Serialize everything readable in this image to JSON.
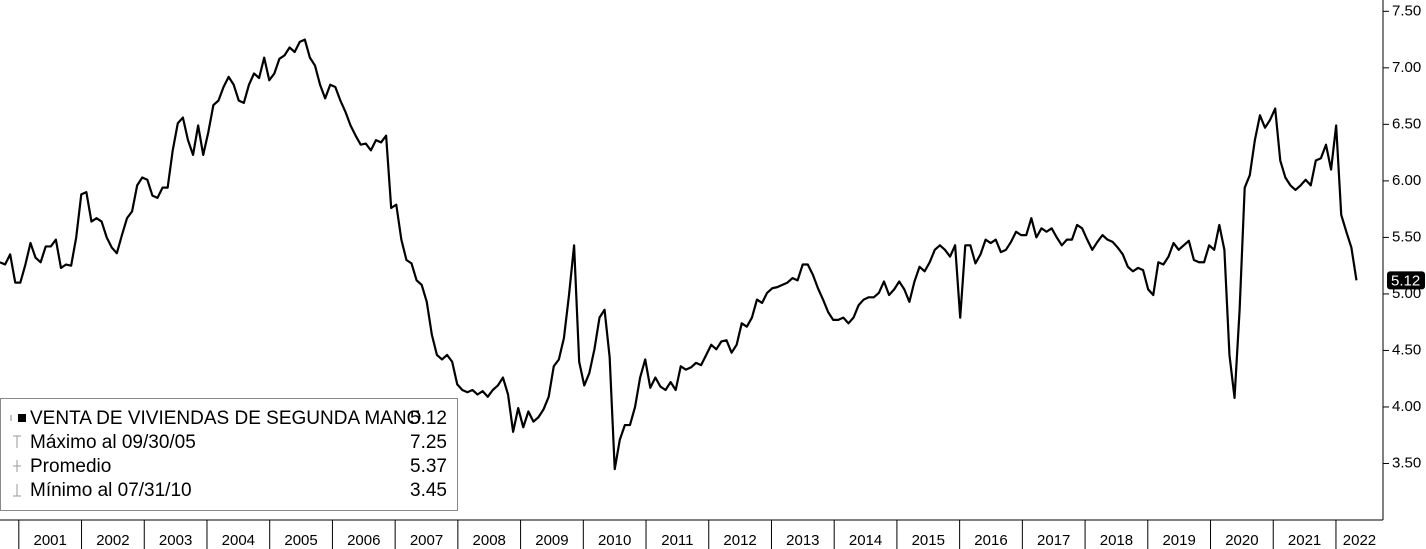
{
  "chart_data": {
    "type": "line",
    "xlim": [
      2000.7,
      2022.75
    ],
    "ylim": [
      3.0,
      7.6
    ],
    "xticks": [
      2001,
      2002,
      2003,
      2004,
      2005,
      2006,
      2007,
      2008,
      2009,
      2010,
      2011,
      2012,
      2013,
      2014,
      2015,
      2016,
      2017,
      2018,
      2019,
      2020,
      2021,
      2022
    ],
    "yticks": [
      {
        "value": 3.5,
        "label": "3.50"
      },
      {
        "value": 4.0,
        "label": "4.00"
      },
      {
        "value": 4.5,
        "label": "4.50"
      },
      {
        "value": 5.0,
        "label": "5.00"
      },
      {
        "value": 5.5,
        "label": "5.50"
      },
      {
        "value": 6.0,
        "label": "6.00"
      },
      {
        "value": 6.5,
        "label": "6.50"
      },
      {
        "value": 7.0,
        "label": "7.00"
      },
      {
        "value": 7.5,
        "label": "7.50"
      }
    ],
    "grid": false,
    "legend": "bottom-left",
    "x": [
      2000.7,
      2000.781,
      2000.862,
      2000.943,
      2001.024,
      2001.105,
      2001.186,
      2001.267,
      2001.348,
      2001.429,
      2001.51,
      2001.591,
      2001.672,
      2001.753,
      2001.834,
      2001.915,
      2001.996,
      2002.077,
      2002.158,
      2002.239,
      2002.32,
      2002.401,
      2002.482,
      2002.563,
      2002.644,
      2002.725,
      2002.806,
      2002.887,
      2002.968,
      2003.049,
      2003.13,
      2003.211,
      2003.292,
      2003.373,
      2003.454,
      2003.535,
      2003.616,
      2003.697,
      2003.778,
      2003.859,
      2003.94,
      2004.021,
      2004.102,
      2004.183,
      2004.264,
      2004.345,
      2004.426,
      2004.507,
      2004.588,
      2004.669,
      2004.75,
      2004.831,
      2004.912,
      2004.993,
      2005.074,
      2005.155,
      2005.236,
      2005.317,
      2005.398,
      2005.479,
      2005.56,
      2005.641,
      2005.722,
      2005.803,
      2005.884,
      2005.965,
      2006.046,
      2006.127,
      2006.208,
      2006.289,
      2006.37,
      2006.451,
      2006.532,
      2006.613,
      2006.694,
      2006.775,
      2006.856,
      2006.937,
      2007.018,
      2007.099,
      2007.18,
      2007.261,
      2007.342,
      2007.423,
      2007.504,
      2007.585,
      2007.666,
      2007.747,
      2007.828,
      2007.909,
      2007.99,
      2008.071,
      2008.152,
      2008.233,
      2008.314,
      2008.395,
      2008.476,
      2008.557,
      2008.638,
      2008.719,
      2008.8,
      2008.881,
      2008.962,
      2009.043,
      2009.124,
      2009.205,
      2009.286,
      2009.367,
      2009.448,
      2009.529,
      2009.61,
      2009.691,
      2009.772,
      2009.853,
      2009.934,
      2010.015,
      2010.096,
      2010.177,
      2010.258,
      2010.339,
      2010.42,
      2010.501,
      2010.582,
      2010.663,
      2010.744,
      2010.825,
      2010.906,
      2010.987,
      2011.068,
      2011.149,
      2011.23,
      2011.311,
      2011.392,
      2011.473,
      2011.554,
      2011.635,
      2011.716,
      2011.797,
      2011.878,
      2011.959,
      2012.04,
      2012.121,
      2012.202,
      2012.283,
      2012.364,
      2012.445,
      2012.526,
      2012.607,
      2012.688,
      2012.769,
      2012.85,
      2012.931,
      2013.012,
      2013.093,
      2013.174,
      2013.255,
      2013.336,
      2013.417,
      2013.498,
      2013.579,
      2013.66,
      2013.741,
      2013.822,
      2013.903,
      2013.984,
      2014.065,
      2014.146,
      2014.227,
      2014.308,
      2014.389,
      2014.47,
      2014.551,
      2014.632,
      2014.713,
      2014.794,
      2014.875,
      2014.956,
      2015.037,
      2015.118,
      2015.199,
      2015.28,
      2015.361,
      2015.442,
      2015.523,
      2015.604,
      2015.685,
      2015.766,
      2015.847,
      2015.928,
      2016.009,
      2016.09,
      2016.171,
      2016.252,
      2016.333,
      2016.414,
      2016.495,
      2016.576,
      2016.657,
      2016.738,
      2016.819,
      2016.9,
      2016.981,
      2017.062,
      2017.143,
      2017.224,
      2017.305,
      2017.386,
      2017.467,
      2017.548,
      2017.629,
      2017.71,
      2017.791,
      2017.872,
      2017.953,
      2018.034,
      2018.115,
      2018.196,
      2018.277,
      2018.358,
      2018.439,
      2018.52,
      2018.601,
      2018.682,
      2018.763,
      2018.844,
      2018.925,
      2019.006,
      2019.087,
      2019.168,
      2019.249,
      2019.33,
      2019.411,
      2019.492,
      2019.573,
      2019.654,
      2019.735,
      2019.816,
      2019.897,
      2019.978,
      2020.059,
      2020.14,
      2020.221,
      2020.302,
      2020.383,
      2020.464,
      2020.545,
      2020.626,
      2020.707,
      2020.788,
      2020.869,
      2020.95,
      2021.031,
      2021.112,
      2021.193,
      2021.274,
      2021.355,
      2021.436,
      2021.517,
      2021.598,
      2021.679,
      2021.76,
      2021.841,
      2021.922,
      2022.003,
      2022.084,
      2022.165,
      2022.246,
      2022.327
    ],
    "series": [
      {
        "name": "VENTA DE VIVIENDAS DE SEGUNDA MANO",
        "color": "#000000",
        "values": [
          5.28,
          5.26,
          5.35,
          5.1,
          5.1,
          5.26,
          5.45,
          5.32,
          5.28,
          5.42,
          5.42,
          5.48,
          5.23,
          5.26,
          5.25,
          5.5,
          5.88,
          5.9,
          5.64,
          5.67,
          5.64,
          5.5,
          5.41,
          5.36,
          5.52,
          5.67,
          5.73,
          5.96,
          6.03,
          6.01,
          5.87,
          5.85,
          5.94,
          5.94,
          6.27,
          6.51,
          6.56,
          6.36,
          6.23,
          6.49,
          6.23,
          6.43,
          6.67,
          6.71,
          6.83,
          6.92,
          6.85,
          6.71,
          6.69,
          6.85,
          6.95,
          6.91,
          7.09,
          6.89,
          6.95,
          7.08,
          7.11,
          7.18,
          7.14,
          7.23,
          7.25,
          7.09,
          7.02,
          6.85,
          6.73,
          6.85,
          6.83,
          6.71,
          6.61,
          6.49,
          6.4,
          6.32,
          6.33,
          6.27,
          6.36,
          6.34,
          6.4,
          5.76,
          5.79,
          5.48,
          5.3,
          5.27,
          5.12,
          5.08,
          4.93,
          4.64,
          4.46,
          4.42,
          4.46,
          4.4,
          4.2,
          4.15,
          4.13,
          4.15,
          4.11,
          4.14,
          4.09,
          4.15,
          4.19,
          4.26,
          4.11,
          3.78,
          3.99,
          3.82,
          3.96,
          3.87,
          3.91,
          3.98,
          4.09,
          4.36,
          4.42,
          4.61,
          4.99,
          5.43,
          4.4,
          4.19,
          4.3,
          4.51,
          4.79,
          4.86,
          4.44,
          3.45,
          3.71,
          3.84,
          3.84,
          4.0,
          4.26,
          4.42,
          4.17,
          4.26,
          4.18,
          4.15,
          4.22,
          4.15,
          4.36,
          4.33,
          4.35,
          4.39,
          4.37,
          4.46,
          4.55,
          4.51,
          4.58,
          4.59,
          4.48,
          4.55,
          4.74,
          4.71,
          4.79,
          4.95,
          4.92,
          5.01,
          5.05,
          5.06,
          5.08,
          5.1,
          5.14,
          5.12,
          5.26,
          5.26,
          5.17,
          5.05,
          4.95,
          4.84,
          4.77,
          4.77,
          4.79,
          4.74,
          4.79,
          4.9,
          4.95,
          4.97,
          4.97,
          5.01,
          5.11,
          4.99,
          5.04,
          5.11,
          5.04,
          4.93,
          5.11,
          5.24,
          5.2,
          5.28,
          5.39,
          5.43,
          5.39,
          5.33,
          5.43,
          4.79,
          5.43,
          5.43,
          5.27,
          5.35,
          5.48,
          5.45,
          5.48,
          5.37,
          5.39,
          5.46,
          5.55,
          5.52,
          5.52,
          5.67,
          5.5,
          5.58,
          5.55,
          5.58,
          5.5,
          5.43,
          5.48,
          5.48,
          5.61,
          5.58,
          5.48,
          5.39,
          5.46,
          5.52,
          5.48,
          5.46,
          5.41,
          5.35,
          5.24,
          5.2,
          5.23,
          5.21,
          5.04,
          4.99,
          5.28,
          5.26,
          5.33,
          5.45,
          5.39,
          5.43,
          5.47,
          5.3,
          5.28,
          5.28,
          5.43,
          5.39,
          5.61,
          5.39,
          4.46,
          4.08,
          4.86,
          5.94,
          6.05,
          6.36,
          6.58,
          6.47,
          6.54,
          6.64,
          6.18,
          6.03,
          5.96,
          5.92,
          5.96,
          6.01,
          5.96,
          6.18,
          6.2,
          6.32,
          6.1,
          6.49,
          5.7,
          5.55,
          5.41,
          5.12
        ]
      }
    ],
    "stats": [
      {
        "label": "Máximo al 09/30/05",
        "value": 7.25
      },
      {
        "label": "Promedio",
        "value": 5.37
      },
      {
        "label": "Mínimo al 07/31/10",
        "value": 3.45
      }
    ]
  }
}
